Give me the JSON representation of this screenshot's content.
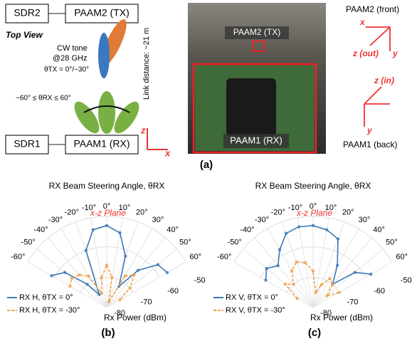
{
  "figure_a": {
    "sdr2": "SDR2",
    "paam2": "PAAM2 (TX)",
    "top_view": "Top View",
    "cw_tone": "CW tone",
    "freq": "@28 GHz",
    "theta_tx": "θTX = 0°/−30°",
    "theta_rx": "−60° ≤ θRX ≤ 60°",
    "link": "Link distance: ~21 m",
    "z": "z",
    "x": "x",
    "sdr1": "SDR1",
    "paam1": "PAAM1 (RX)",
    "photo_tx": "PAAM2 (TX)",
    "photo_rx": "PAAM1 (RX)",
    "front": "PAAM2 (front)",
    "front_x": "x",
    "front_z": "z (out)",
    "front_y": "y",
    "back_z": "z (in)",
    "back_y": "y",
    "back": "PAAM1 (back)",
    "caption": "(a)"
  },
  "chart_data": [
    {
      "type": "polar",
      "title": "RX Beam Steering Angle, θRX",
      "annotation": "x-z Plane",
      "y_label": "Rx Power (dBm)",
      "panel": "(b)",
      "x": [
        -60,
        -50,
        -40,
        -30,
        -20,
        -10,
        0,
        10,
        20,
        30,
        40,
        50,
        60
      ],
      "xlim": [
        -60,
        60
      ],
      "ylim": [
        -80,
        -50
      ],
      "xticks": [
        {
          "value": -60,
          "label": "-60°"
        },
        {
          "value": -50,
          "label": "-50°"
        },
        {
          "value": -40,
          "label": "-40°"
        },
        {
          "value": -30,
          "label": "-30°"
        },
        {
          "value": -20,
          "label": "-20°"
        },
        {
          "value": -10,
          "label": "-10°"
        },
        {
          "value": 0,
          "label": "0°"
        },
        {
          "value": 10,
          "label": "10°"
        },
        {
          "value": 20,
          "label": "20°"
        },
        {
          "value": 30,
          "label": "30°"
        },
        {
          "value": 40,
          "label": "40°"
        },
        {
          "value": 50,
          "label": "50°"
        },
        {
          "value": 60,
          "label": "60°"
        }
      ],
      "yticks": [
        -80,
        -70,
        -60,
        -50
      ],
      "legend": "lower left",
      "series": [
        {
          "name": "RX H, θTX = 0°",
          "color": "#3a78b8",
          "values": [
            -59,
            -62,
            -70,
            -75,
            -60,
            -54,
            -53,
            -55,
            -62,
            -72,
            -64,
            -58,
            -57
          ]
        },
        {
          "name": "RX H, θTX = -30°",
          "color": "#f0a048",
          "values": [
            -66,
            -65,
            -66,
            -68,
            -75,
            -70,
            -66,
            -70,
            -78,
            -68,
            -66,
            -70,
            -75
          ]
        }
      ]
    },
    {
      "type": "polar",
      "title": "RX Beam Steering Angle, θRX",
      "annotation": "x-z Plane",
      "y_label": "Rx Power (dBm)",
      "panel": "(c)",
      "x": [
        -60,
        -50,
        -40,
        -30,
        -20,
        -10,
        0,
        10,
        20,
        30,
        40,
        50,
        60
      ],
      "xlim": [
        -60,
        60
      ],
      "ylim": [
        -80,
        -50
      ],
      "xticks": [
        {
          "value": -60,
          "label": "-60°"
        },
        {
          "value": -50,
          "label": "-50°"
        },
        {
          "value": -40,
          "label": "-40°"
        },
        {
          "value": -30,
          "label": "-30°"
        },
        {
          "value": -20,
          "label": "-20°"
        },
        {
          "value": -10,
          "label": "-10°"
        },
        {
          "value": 0,
          "label": "0°"
        },
        {
          "value": 10,
          "label": "10°"
        },
        {
          "value": 20,
          "label": "20°"
        },
        {
          "value": 30,
          "label": "30°"
        },
        {
          "value": 40,
          "label": "40°"
        },
        {
          "value": 50,
          "label": "50°"
        },
        {
          "value": 60,
          "label": "60°"
        }
      ],
      "yticks": [
        -80,
        -70,
        -60,
        -50
      ],
      "legend": "lower left",
      "series": [
        {
          "name": "RX V, θTX = 0°",
          "color": "#3a78b8",
          "values": [
            -62,
            -60,
            -62,
            -58,
            -54,
            -53,
            -53,
            -54,
            -56,
            -64,
            -70,
            -62,
            -58
          ]
        },
        {
          "name": "RX V, θTX = -30°",
          "color": "#f0a048",
          "values": [
            -74,
            -68,
            -70,
            -66,
            -64,
            -65,
            -68,
            -75,
            -72,
            -69,
            -70,
            -74,
            -70
          ]
        }
      ]
    }
  ]
}
